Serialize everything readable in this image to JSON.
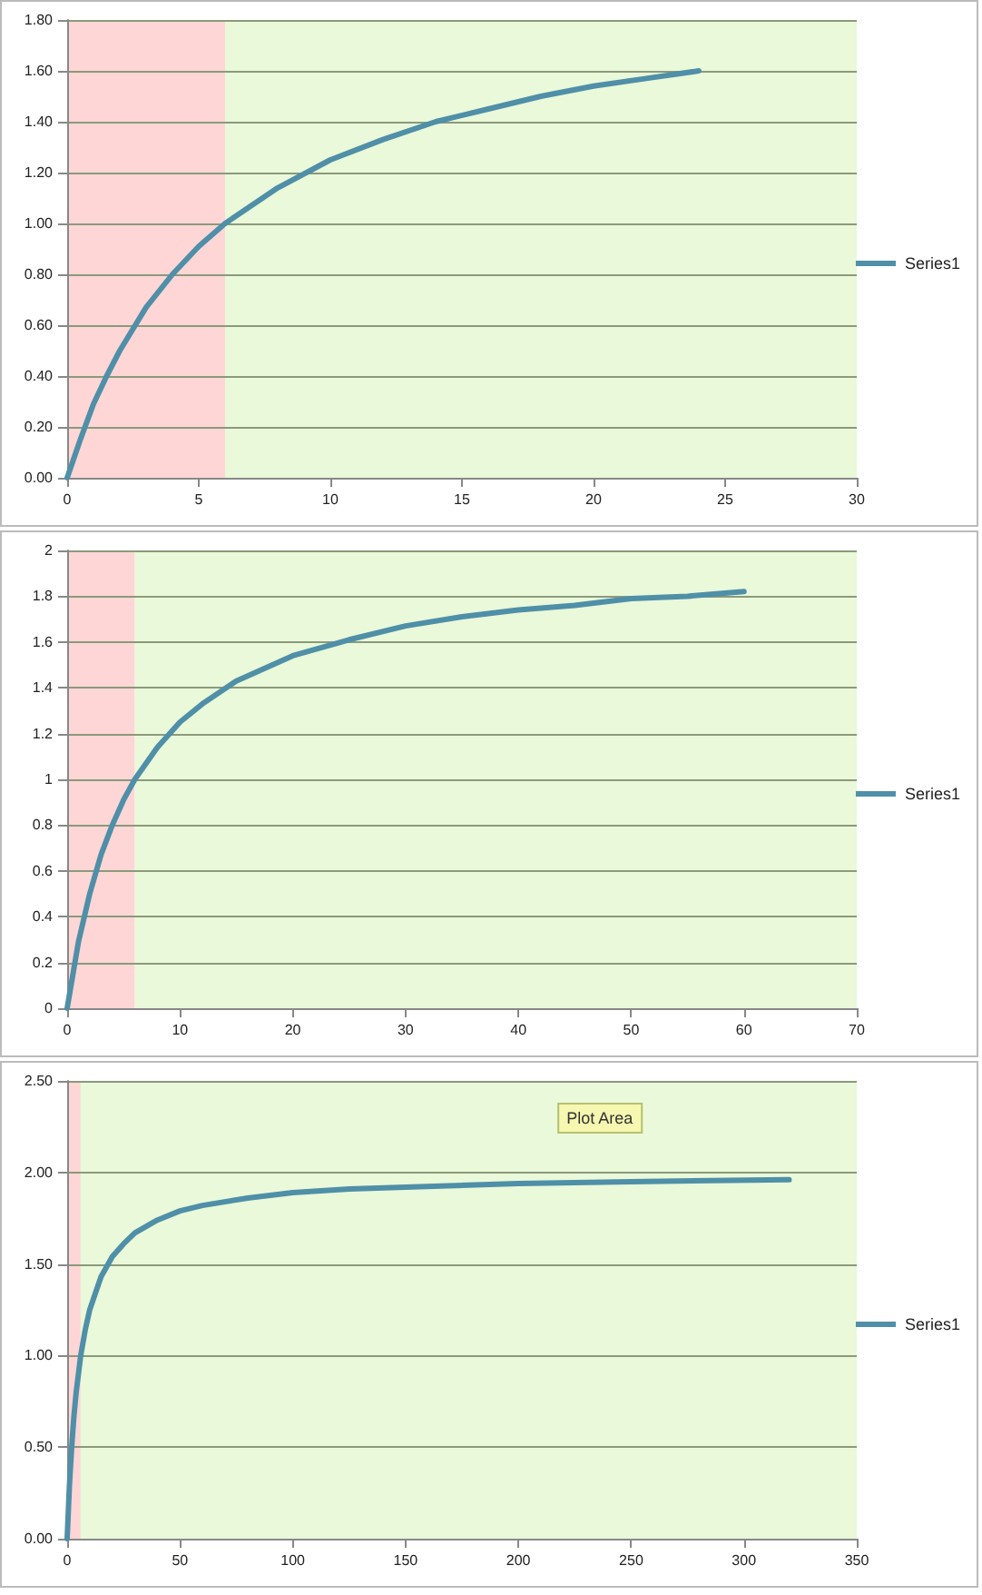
{
  "chart_data": [
    {
      "type": "line",
      "x": [
        0,
        0.5,
        1,
        1.5,
        2,
        3,
        4,
        5,
        6,
        8,
        10,
        12,
        14,
        16,
        18,
        20,
        22,
        24
      ],
      "series": [
        {
          "name": "Series1",
          "color": "#4f8fa8",
          "values": [
            0,
            0.15,
            0.29,
            0.4,
            0.5,
            0.67,
            0.8,
            0.91,
            1,
            1.14,
            1.25,
            1.33,
            1.4,
            1.45,
            1.5,
            1.54,
            1.57,
            1.6
          ]
        }
      ],
      "xlim": [
        0,
        30
      ],
      "xticks": [
        0,
        5,
        10,
        15,
        20,
        25,
        30
      ],
      "ylim": [
        0,
        1.8
      ],
      "yticks": [
        {
          "value": 0,
          "label": "0.00"
        },
        {
          "value": 0.2,
          "label": "0.20"
        },
        {
          "value": 0.4,
          "label": "0.40"
        },
        {
          "value": 0.6,
          "label": "0.60"
        },
        {
          "value": 0.8,
          "label": "0.80"
        },
        {
          "value": 1,
          "label": "1.00"
        },
        {
          "value": 1.2,
          "label": "1.20"
        },
        {
          "value": 1.4,
          "label": "1.40"
        },
        {
          "value": 1.6,
          "label": "1.60"
        },
        {
          "value": 1.8,
          "label": "1.80"
        }
      ],
      "bands": [
        {
          "axis": "x",
          "from": 0,
          "to": 6,
          "color": "#ffd6d6"
        },
        {
          "axis": "x",
          "from": 6,
          "to": 30,
          "color": "#e9f9d9"
        }
      ],
      "grid": "y",
      "legend": "right",
      "marker": "none",
      "line_style": "solid"
    },
    {
      "type": "line",
      "x": [
        0,
        1,
        2,
        3,
        4,
        5,
        6,
        8,
        10,
        12,
        15,
        20,
        25,
        30,
        35,
        40,
        45,
        50,
        55,
        60
      ],
      "series": [
        {
          "name": "Series1",
          "color": "#4f8fa8",
          "values": [
            0,
            0.29,
            0.5,
            0.67,
            0.8,
            0.91,
            1,
            1.14,
            1.25,
            1.33,
            1.43,
            1.54,
            1.61,
            1.67,
            1.71,
            1.74,
            1.76,
            1.79,
            1.8,
            1.82
          ]
        }
      ],
      "xlim": [
        0,
        70
      ],
      "xticks": [
        0,
        10,
        20,
        30,
        40,
        50,
        60,
        70
      ],
      "ylim": [
        0,
        2
      ],
      "yticks": [
        0,
        0.2,
        0.4,
        0.6,
        0.8,
        1,
        1.2,
        1.4,
        1.6,
        1.8,
        2
      ],
      "bands": [
        {
          "axis": "x",
          "from": 0,
          "to": 6,
          "color": "#ffd6d6"
        },
        {
          "axis": "x",
          "from": 6,
          "to": 70,
          "color": "#e9f9d9"
        }
      ],
      "grid": "y",
      "legend": "right",
      "marker": "none",
      "line_style": "solid"
    },
    {
      "type": "line",
      "x": [
        0,
        1,
        2,
        3,
        4,
        6,
        8,
        10,
        15,
        20,
        25,
        30,
        40,
        50,
        60,
        80,
        100,
        125,
        150,
        200,
        250,
        320
      ],
      "series": [
        {
          "name": "Series1",
          "color": "#4f8fa8",
          "values": [
            0,
            0.29,
            0.5,
            0.67,
            0.8,
            1,
            1.14,
            1.25,
            1.43,
            1.54,
            1.61,
            1.67,
            1.74,
            1.79,
            1.82,
            1.86,
            1.89,
            1.91,
            1.92,
            1.94,
            1.95,
            1.96
          ]
        }
      ],
      "xlim": [
        0,
        350
      ],
      "xticks": [
        0,
        50,
        100,
        150,
        200,
        250,
        300,
        350
      ],
      "ylim": [
        0,
        2.5
      ],
      "yticks": [
        {
          "value": 0,
          "label": "0.00"
        },
        {
          "value": 0.5,
          "label": "0.50"
        },
        {
          "value": 1,
          "label": "1.00"
        },
        {
          "value": 1.5,
          "label": "1.50"
        },
        {
          "value": 2,
          "label": "2.00"
        },
        {
          "value": 2.5,
          "label": "2.50"
        }
      ],
      "bands": [
        {
          "axis": "x",
          "from": 0,
          "to": 6,
          "color": "#ffd6d6"
        },
        {
          "axis": "x",
          "from": 6,
          "to": 350,
          "color": "#e9f9d9"
        }
      ],
      "annotations": [
        "Plot Area"
      ],
      "grid": "y",
      "legend": "right",
      "marker": "none",
      "line_style": "solid"
    }
  ]
}
